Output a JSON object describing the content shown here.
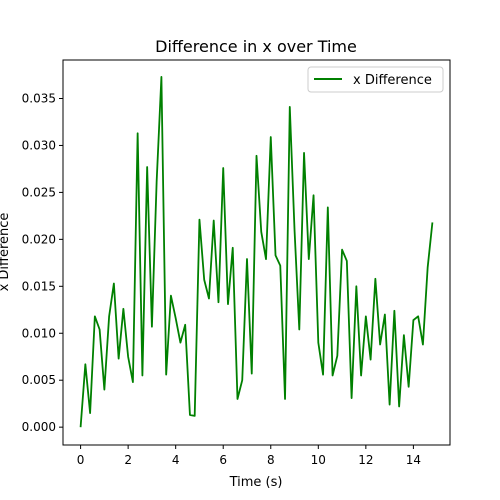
{
  "chart_data": {
    "type": "line",
    "title": "Difference in x over Time",
    "xlabel": "Time (s)",
    "ylabel": "x Difference",
    "xlim": [
      -0.74,
      15.54
    ],
    "ylim": [
      -0.0019,
      0.0391
    ],
    "xticks": [
      0,
      2,
      4,
      6,
      8,
      10,
      12,
      14
    ],
    "yticks": [
      0.0,
      0.005,
      0.01,
      0.015,
      0.02,
      0.025,
      0.03,
      0.035
    ],
    "ytick_labels": [
      "0.000",
      "0.005",
      "0.010",
      "0.015",
      "0.020",
      "0.025",
      "0.030",
      "0.035"
    ],
    "grid": false,
    "legend": {
      "position": "top-right",
      "entries": [
        "x Difference"
      ]
    },
    "series": [
      {
        "name": "x Difference",
        "color": "#008000",
        "x": [
          0.0,
          0.2,
          0.4,
          0.6,
          0.8,
          1.0,
          1.2,
          1.4,
          1.6,
          1.8,
          2.0,
          2.2,
          2.4,
          2.6,
          2.8,
          3.0,
          3.2,
          3.4,
          3.6,
          3.8,
          4.0,
          4.2,
          4.4,
          4.6,
          4.8,
          5.0,
          5.2,
          5.4,
          5.6,
          5.8,
          6.0,
          6.2,
          6.4,
          6.6,
          6.8,
          7.0,
          7.2,
          7.4,
          7.6,
          7.8,
          8.0,
          8.2,
          8.4,
          8.6,
          8.8,
          9.0,
          9.2,
          9.4,
          9.6,
          9.8,
          10.0,
          10.2,
          10.4,
          10.6,
          10.8,
          11.0,
          11.2,
          11.4,
          11.6,
          11.8,
          12.0,
          12.2,
          12.4,
          12.6,
          12.8,
          13.0,
          13.2,
          13.4,
          13.6,
          13.8,
          14.0,
          14.2,
          14.4,
          14.6,
          14.8
        ],
        "y": [
          0.0,
          0.0067,
          0.0015,
          0.0118,
          0.0104,
          0.004,
          0.0118,
          0.0153,
          0.0073,
          0.0126,
          0.0075,
          0.0048,
          0.0313,
          0.0055,
          0.0277,
          0.0107,
          0.0262,
          0.0373,
          0.0056,
          0.014,
          0.0116,
          0.009,
          0.0109,
          0.0013,
          0.0012,
          0.0221,
          0.0157,
          0.0137,
          0.022,
          0.0133,
          0.0276,
          0.0131,
          0.0191,
          0.003,
          0.005,
          0.0179,
          0.0057,
          0.0289,
          0.0208,
          0.0179,
          0.0309,
          0.0183,
          0.0172,
          0.003,
          0.0341,
          0.021,
          0.0104,
          0.0292,
          0.0179,
          0.0247,
          0.009,
          0.0056,
          0.0234,
          0.0055,
          0.0076,
          0.0189,
          0.0177,
          0.0031,
          0.015,
          0.0055,
          0.0118,
          0.0072,
          0.0158,
          0.0088,
          0.012,
          0.0024,
          0.0124,
          0.0022,
          0.0098,
          0.0043,
          0.0114,
          0.0118,
          0.0088,
          0.017,
          0.0218
        ]
      }
    ]
  }
}
